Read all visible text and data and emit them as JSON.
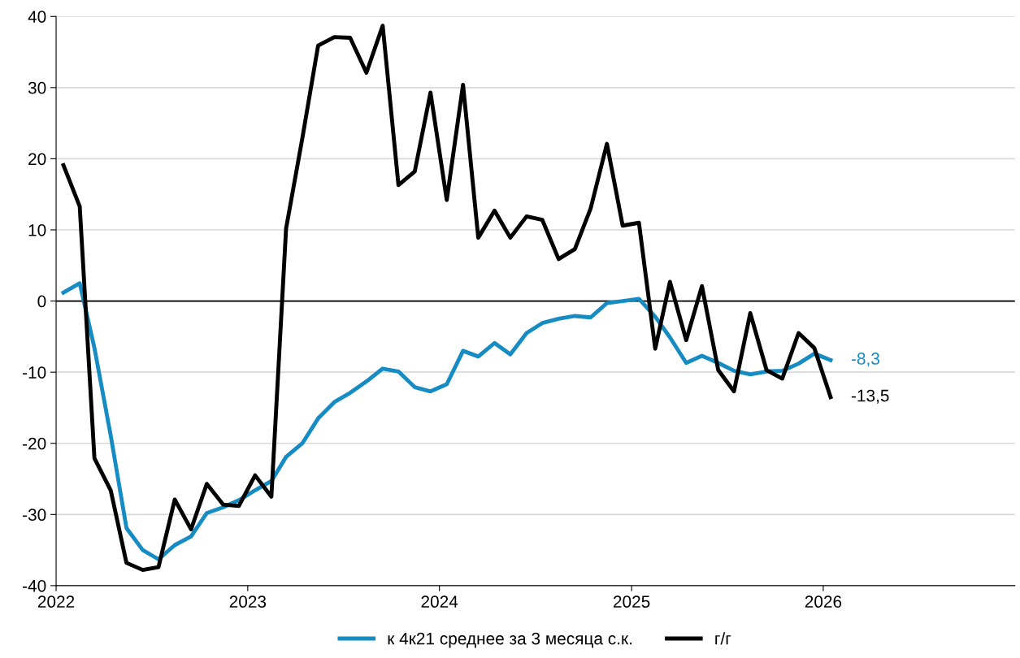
{
  "chart_data": {
    "type": "line",
    "x": [
      "2022-01-15",
      "2022-02-15",
      "2022-03-15",
      "2022-04-15",
      "2022-05-15",
      "2022-06-15",
      "2022-07-15",
      "2022-08-15",
      "2022-09-15",
      "2022-10-15",
      "2022-11-15",
      "2022-12-15",
      "2023-01-15",
      "2023-02-15",
      "2023-03-15",
      "2023-04-15",
      "2023-05-15",
      "2023-06-15",
      "2023-07-15",
      "2023-08-15",
      "2023-09-15",
      "2023-10-15",
      "2023-11-15",
      "2023-12-15",
      "2024-01-15",
      "2024-02-15",
      "2024-03-15",
      "2024-04-15",
      "2024-05-15",
      "2024-06-15",
      "2024-07-15",
      "2024-08-15",
      "2024-09-15",
      "2024-10-15",
      "2024-11-15",
      "2024-12-15",
      "2025-01-15",
      "2025-02-15",
      "2025-03-15",
      "2025-04-15",
      "2025-05-15",
      "2025-06-15",
      "2025-07-15",
      "2025-08-15",
      "2025-09-15",
      "2025-10-15",
      "2025-11-15",
      "2025-12-15",
      "2026-01-15"
    ],
    "series": [
      {
        "name": "к 4к21 среднее за 3 месяца с.к.",
        "color": "#168cc3",
        "values": [
          1.2,
          2.5,
          -6.6,
          -18.9,
          -31.9,
          -35.0,
          -36.3,
          -34.3,
          -33.1,
          -29.8,
          -29.0,
          -28.0,
          -26.6,
          -25.3,
          -21.9,
          -20.0,
          -16.5,
          -14.2,
          -12.9,
          -11.3,
          -9.5,
          -9.9,
          -12.1,
          -12.7,
          -11.7,
          -7.0,
          -7.8,
          -5.9,
          -7.5,
          -4.5,
          -3.1,
          -2.5,
          -2.1,
          -2.3,
          -0.3,
          0.0,
          0.3,
          -2.2,
          -5.1,
          -8.7,
          -7.7,
          -8.7,
          -9.8,
          -10.3,
          -9.9,
          -9.8,
          -8.8,
          -7.4,
          -8.3
        ]
      },
      {
        "name": "г/г",
        "color": "#000000",
        "values": [
          19.1,
          13.3,
          -22.1,
          -26.6,
          -36.8,
          -37.8,
          -37.4,
          -27.9,
          -32.1,
          -25.7,
          -28.6,
          -28.8,
          -24.5,
          -27.5,
          10.2,
          22.9,
          35.9,
          37.1,
          37.0,
          32.1,
          38.7,
          16.3,
          18.2,
          29.3,
          14.2,
          30.4,
          8.9,
          12.7,
          8.9,
          11.9,
          11.4,
          5.9,
          7.3,
          13.0,
          22.1,
          10.6,
          11.0,
          -6.7,
          2.7,
          -5.5,
          2.1,
          -9.7,
          -12.7,
          -1.7,
          -9.7,
          -10.9,
          -4.5,
          -6.6,
          -13.5
        ]
      }
    ],
    "annotations": [
      {
        "text": "-8,3",
        "x": "2026-01-15",
        "y": -8.3
      },
      {
        "text": "-13,5",
        "x": "2026-01-15",
        "y": -13.5
      }
    ],
    "xlim": [
      "2022-01-01",
      "2027-01-01"
    ],
    "xticks": [
      {
        "value": "2022-01-01",
        "label": "2022"
      },
      {
        "value": "2023-01-01",
        "label": "2023"
      },
      {
        "value": "2024-01-01",
        "label": "2024"
      },
      {
        "value": "2025-01-01",
        "label": "2025"
      },
      {
        "value": "2026-01-01",
        "label": "2026"
      }
    ],
    "ylim": [
      -40,
      40
    ],
    "yticks": [
      -40,
      -30,
      -20,
      -10,
      0,
      10,
      20,
      30,
      40
    ],
    "grid": "y",
    "legend": "bottom",
    "marker": "none",
    "line_style": "solid"
  }
}
